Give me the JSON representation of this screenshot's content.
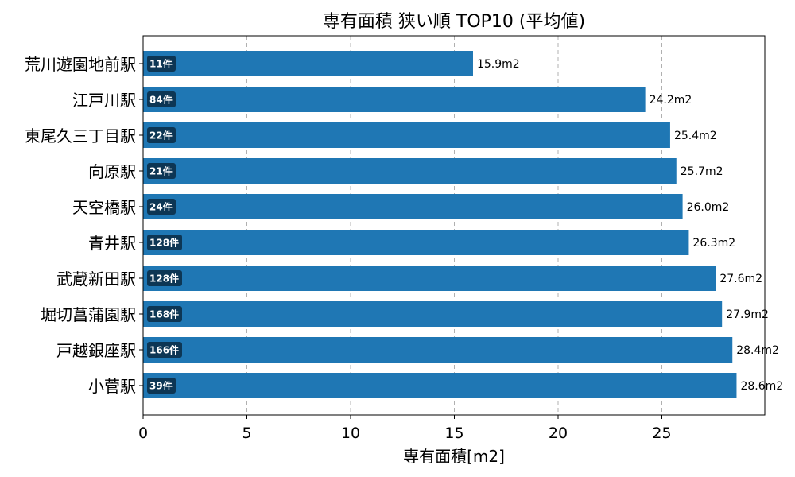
{
  "chart_data": {
    "type": "bar",
    "orientation": "horizontal",
    "title": "専有面積 狭い順 TOP10 (平均値)",
    "xlabel": "専有面積[m2]",
    "ylabel": "",
    "xlim": [
      0,
      30
    ],
    "xticks": [
      0,
      5,
      10,
      15,
      20,
      25
    ],
    "grid": "x",
    "bar_color": "#1f77b4",
    "badge_color": "#0d3654",
    "categories": [
      "荒川遊園地前駅",
      "江戸川駅",
      "東尾久三丁目駅",
      "向原駅",
      "天空橋駅",
      "青井駅",
      "武蔵新田駅",
      "堀切菖蒲園駅",
      "戸越銀座駅",
      "小菅駅"
    ],
    "values": [
      15.9,
      24.2,
      25.4,
      25.7,
      26.0,
      26.3,
      27.6,
      27.9,
      28.4,
      28.6
    ],
    "value_labels": [
      "15.9m2",
      "24.2m2",
      "25.4m2",
      "25.7m2",
      "26.0m2",
      "26.3m2",
      "27.6m2",
      "27.9m2",
      "28.4m2",
      "28.6m2"
    ],
    "counts": [
      "11件",
      "84件",
      "22件",
      "21件",
      "24件",
      "128件",
      "128件",
      "168件",
      "166件",
      "39件"
    ]
  }
}
